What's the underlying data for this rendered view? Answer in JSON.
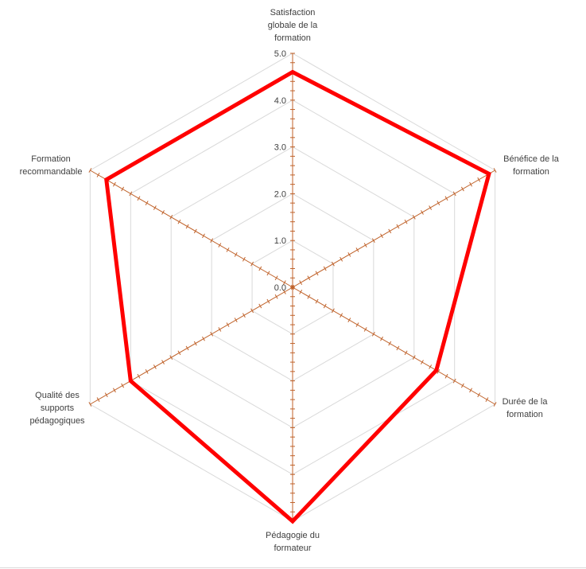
{
  "chart_data": {
    "type": "radar",
    "categories": [
      "Satisfaction\nglobale de la\nformation",
      "Bénéfice de la\nformation",
      "Durée de la\nformation",
      "Pédagogie du\nformateur",
      "Qualité des\nsupports\npédagogiques",
      "Formation\nrecommandable"
    ],
    "series": [
      {
        "values": [
          4.6,
          4.85,
          3.55,
          5.0,
          4.0,
          4.6
        ],
        "color": "#ff0000"
      }
    ],
    "rlim": [
      0,
      5
    ],
    "ticks": [
      "0.0",
      "1.0",
      "2.0",
      "3.0",
      "4.0",
      "5.0"
    ],
    "grid": true,
    "legend": "none"
  },
  "colors": {
    "axis": "#c0622a",
    "grid": "#d9d9d9",
    "series": "#ff0000"
  }
}
